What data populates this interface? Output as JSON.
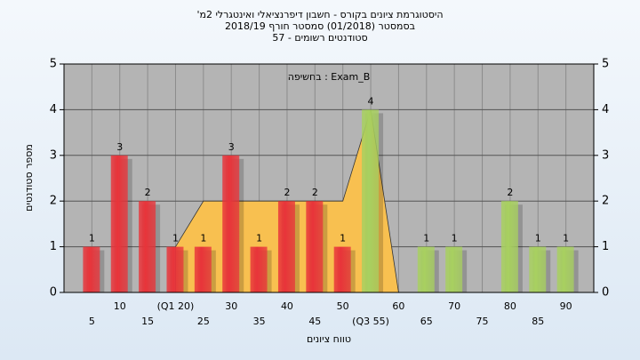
{
  "chart_data": {
    "type": "bar",
    "title": "היסטוגרמת ציונים בקורס - חשבון דיפרנציאלי ואינטגרלי 2מ'",
    "subtitle": "בסמסטר (01/2018) סמסטר חורף 2018/19",
    "subtitle2": "סטודנטים רשומים - 57",
    "annotation": "בחשיפה : Exam_B",
    "xlabel": "טווח ציונים",
    "ylabel": "מספר סטודנטים",
    "categories": [
      "5",
      "10",
      "15",
      "(Q1 20)",
      "25",
      "30",
      "35",
      "40",
      "45",
      "50",
      "(Q3 55)",
      "60",
      "65",
      "70",
      "75",
      "80",
      "85",
      "90"
    ],
    "values": [
      1,
      3,
      2,
      1,
      1,
      3,
      1,
      2,
      2,
      1,
      4,
      0,
      1,
      1,
      0,
      2,
      1,
      1
    ],
    "colors": [
      "#e8343a",
      "#e8343a",
      "#e8343a",
      "#e8343a",
      "#e8343a",
      "#e8343a",
      "#e8343a",
      "#e8343a",
      "#e8343a",
      "#e8343a",
      "#a8d060",
      "#a8d060",
      "#a8d060",
      "#a8d060",
      "#a8d060",
      "#a8d060",
      "#a8d060",
      "#a8d060"
    ],
    "quartile_area": {
      "x": [
        3,
        4,
        9,
        10,
        11
      ],
      "values": [
        1,
        2,
        2,
        4,
        0
      ],
      "color": "#f8c050"
    },
    "ylim": [
      0,
      5
    ],
    "yticks": [
      0,
      1,
      2,
      3,
      4,
      5
    ],
    "grid": true
  }
}
